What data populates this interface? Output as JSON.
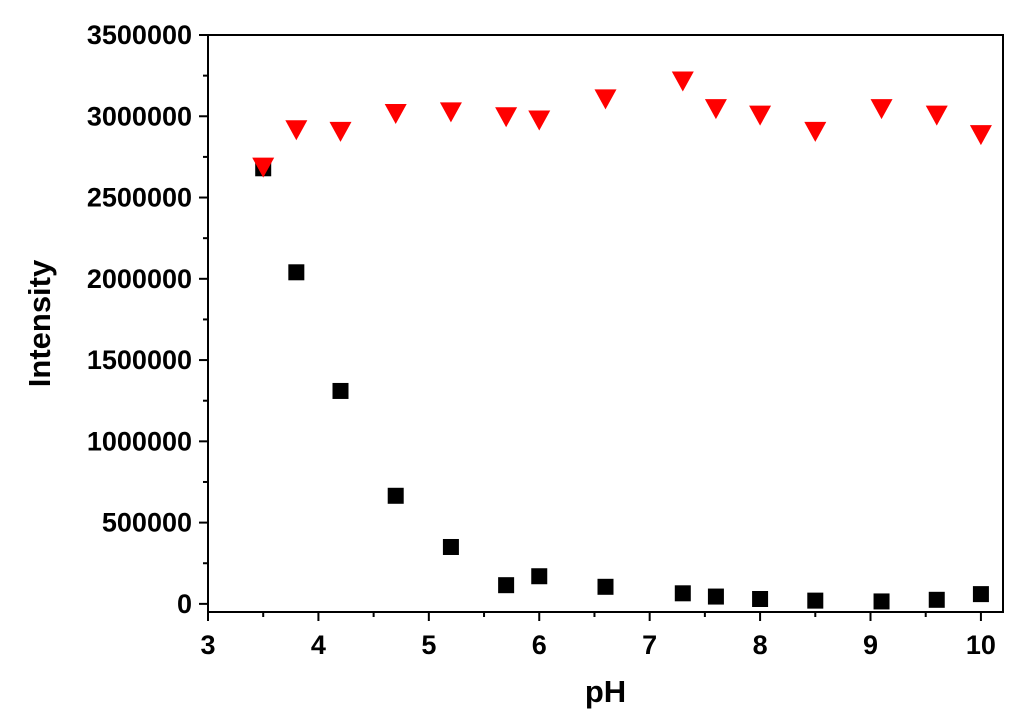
{
  "chart_data": {
    "type": "scatter",
    "title": "",
    "xlabel": "pH",
    "ylabel": "Intensity",
    "xlim": [
      3,
      10.2
    ],
    "ylim": [
      -50000,
      3500000
    ],
    "x_ticks": [
      3,
      4,
      5,
      6,
      7,
      8,
      9,
      10
    ],
    "x_tick_labels": [
      "3",
      "4",
      "5",
      "6",
      "7",
      "8",
      "9",
      "10"
    ],
    "y_ticks": [
      0,
      500000,
      1000000,
      1500000,
      2000000,
      2500000,
      3000000,
      3500000
    ],
    "y_tick_labels": [
      "0",
      "500000",
      "1000000",
      "1500000",
      "2000000",
      "2500000",
      "3000000",
      "3500000"
    ],
    "grid": false,
    "legend": "none",
    "series": [
      {
        "marker": "square",
        "color": "#000000",
        "x": [
          3.5,
          3.8,
          4.2,
          4.7,
          5.2,
          5.7,
          6.0,
          6.6,
          7.3,
          7.6,
          8.0,
          8.5,
          9.1,
          9.6,
          10.0
        ],
        "y": [
          2680000,
          2040000,
          1310000,
          665000,
          350000,
          115000,
          170000,
          105000,
          65000,
          45000,
          30000,
          20000,
          15000,
          25000,
          60000
        ]
      },
      {
        "marker": "triangle-down",
        "color": "#ff0000",
        "x": [
          3.5,
          3.8,
          4.2,
          4.7,
          5.2,
          5.7,
          6.0,
          6.6,
          7.3,
          7.6,
          8.0,
          8.5,
          9.1,
          9.6,
          10.0
        ],
        "y": [
          2690000,
          2920000,
          2910000,
          3020000,
          3030000,
          3000000,
          2980000,
          3110000,
          3220000,
          3050000,
          3010000,
          2910000,
          3050000,
          3010000,
          2890000
        ]
      }
    ]
  }
}
